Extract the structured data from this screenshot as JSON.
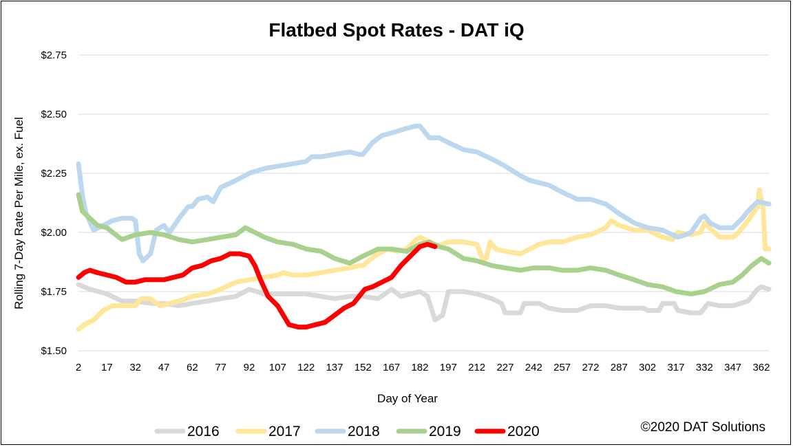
{
  "chart_data": {
    "type": "line",
    "title": "Flatbed Spot Rates - DAT iQ",
    "xlabel": "Day of Year",
    "ylabel": "Rolling 7-Day Rate Per Mile, ex. Fuel",
    "xlim": [
      2,
      366
    ],
    "ylim": [
      1.5,
      2.75
    ],
    "x_ticks": [
      2,
      17,
      32,
      47,
      62,
      77,
      92,
      107,
      122,
      137,
      152,
      167,
      182,
      197,
      212,
      227,
      242,
      257,
      272,
      287,
      302,
      317,
      332,
      347,
      362
    ],
    "y_ticks": [
      {
        "value": 1.5,
        "label": "$1.50"
      },
      {
        "value": 1.75,
        "label": "$1.75"
      },
      {
        "value": 2.0,
        "label": "$2.00"
      },
      {
        "value": 2.25,
        "label": "$2.25"
      },
      {
        "value": 2.5,
        "label": "$2.50"
      },
      {
        "value": 2.75,
        "label": "$2.75"
      }
    ],
    "grid": true,
    "legend_position": "bottom",
    "copyright": "©2020 DAT Solutions",
    "series": [
      {
        "name": "2016",
        "color": "#d9d9d9",
        "points": [
          [
            2,
            1.78
          ],
          [
            8,
            1.76
          ],
          [
            17,
            1.74
          ],
          [
            25,
            1.71
          ],
          [
            32,
            1.71
          ],
          [
            40,
            1.7
          ],
          [
            47,
            1.7
          ],
          [
            55,
            1.69
          ],
          [
            62,
            1.7
          ],
          [
            70,
            1.71
          ],
          [
            77,
            1.72
          ],
          [
            85,
            1.73
          ],
          [
            92,
            1.76
          ],
          [
            100,
            1.74
          ],
          [
            107,
            1.74
          ],
          [
            115,
            1.74
          ],
          [
            122,
            1.74
          ],
          [
            130,
            1.73
          ],
          [
            137,
            1.72
          ],
          [
            145,
            1.73
          ],
          [
            152,
            1.73
          ],
          [
            160,
            1.72
          ],
          [
            167,
            1.76
          ],
          [
            172,
            1.73
          ],
          [
            182,
            1.75
          ],
          [
            186,
            1.73
          ],
          [
            190,
            1.63
          ],
          [
            194,
            1.65
          ],
          [
            197,
            1.75
          ],
          [
            205,
            1.75
          ],
          [
            212,
            1.74
          ],
          [
            220,
            1.72
          ],
          [
            225,
            1.7
          ],
          [
            227,
            1.66
          ],
          [
            235,
            1.66
          ],
          [
            237,
            1.7
          ],
          [
            245,
            1.7
          ],
          [
            250,
            1.68
          ],
          [
            257,
            1.67
          ],
          [
            265,
            1.67
          ],
          [
            272,
            1.69
          ],
          [
            280,
            1.69
          ],
          [
            287,
            1.68
          ],
          [
            295,
            1.68
          ],
          [
            300,
            1.68
          ],
          [
            302,
            1.67
          ],
          [
            308,
            1.67
          ],
          [
            310,
            1.7
          ],
          [
            316,
            1.7
          ],
          [
            318,
            1.67
          ],
          [
            325,
            1.66
          ],
          [
            330,
            1.66
          ],
          [
            334,
            1.7
          ],
          [
            340,
            1.69
          ],
          [
            347,
            1.69
          ],
          [
            355,
            1.71
          ],
          [
            360,
            1.76
          ],
          [
            362,
            1.77
          ],
          [
            366,
            1.76
          ]
        ]
      },
      {
        "name": "2017",
        "color": "#ffe699",
        "points": [
          [
            2,
            1.59
          ],
          [
            5,
            1.61
          ],
          [
            10,
            1.63
          ],
          [
            15,
            1.67
          ],
          [
            20,
            1.69
          ],
          [
            25,
            1.69
          ],
          [
            32,
            1.69
          ],
          [
            35,
            1.72
          ],
          [
            40,
            1.72
          ],
          [
            45,
            1.69
          ],
          [
            50,
            1.7
          ],
          [
            55,
            1.71
          ],
          [
            62,
            1.73
          ],
          [
            70,
            1.74
          ],
          [
            77,
            1.76
          ],
          [
            85,
            1.79
          ],
          [
            92,
            1.8
          ],
          [
            100,
            1.81
          ],
          [
            107,
            1.82
          ],
          [
            110,
            1.83
          ],
          [
            115,
            1.82
          ],
          [
            122,
            1.82
          ],
          [
            130,
            1.83
          ],
          [
            137,
            1.84
          ],
          [
            145,
            1.85
          ],
          [
            150,
            1.86
          ],
          [
            152,
            1.86
          ],
          [
            155,
            1.88
          ],
          [
            160,
            1.91
          ],
          [
            165,
            1.93
          ],
          [
            170,
            1.92
          ],
          [
            175,
            1.93
          ],
          [
            180,
            1.97
          ],
          [
            182,
            1.98
          ],
          [
            187,
            1.96
          ],
          [
            190,
            1.94
          ],
          [
            197,
            1.96
          ],
          [
            205,
            1.96
          ],
          [
            212,
            1.95
          ],
          [
            215,
            1.89
          ],
          [
            217,
            1.89
          ],
          [
            219,
            1.96
          ],
          [
            222,
            1.93
          ],
          [
            227,
            1.92
          ],
          [
            235,
            1.91
          ],
          [
            240,
            1.93
          ],
          [
            245,
            1.95
          ],
          [
            250,
            1.96
          ],
          [
            257,
            1.96
          ],
          [
            265,
            1.98
          ],
          [
            272,
            1.99
          ],
          [
            280,
            2.02
          ],
          [
            283,
            2.05
          ],
          [
            287,
            2.03
          ],
          [
            295,
            2.01
          ],
          [
            302,
            2.01
          ],
          [
            310,
            1.98
          ],
          [
            315,
            1.97
          ],
          [
            318,
            2.0
          ],
          [
            325,
            1.99
          ],
          [
            330,
            2.0
          ],
          [
            332,
            2.04
          ],
          [
            336,
            2.01
          ],
          [
            340,
            1.98
          ],
          [
            347,
            1.98
          ],
          [
            350,
            2.0
          ],
          [
            355,
            2.05
          ],
          [
            360,
            2.11
          ],
          [
            361,
            2.18
          ],
          [
            362,
            2.14
          ],
          [
            363,
            2.1
          ],
          [
            364,
            1.93
          ],
          [
            366,
            1.93
          ]
        ]
      },
      {
        "name": "2018",
        "color": "#bdd7ee",
        "points": [
          [
            2,
            2.29
          ],
          [
            4,
            2.16
          ],
          [
            6,
            2.08
          ],
          [
            10,
            2.01
          ],
          [
            15,
            2.03
          ],
          [
            20,
            2.05
          ],
          [
            25,
            2.06
          ],
          [
            30,
            2.06
          ],
          [
            32,
            2.05
          ],
          [
            34,
            1.91
          ],
          [
            36,
            1.88
          ],
          [
            40,
            1.91
          ],
          [
            43,
            2.01
          ],
          [
            47,
            2.03
          ],
          [
            50,
            2.0
          ],
          [
            55,
            2.06
          ],
          [
            60,
            2.11
          ],
          [
            62,
            2.11
          ],
          [
            65,
            2.14
          ],
          [
            70,
            2.15
          ],
          [
            73,
            2.13
          ],
          [
            77,
            2.19
          ],
          [
            85,
            2.22
          ],
          [
            92,
            2.25
          ],
          [
            100,
            2.27
          ],
          [
            107,
            2.28
          ],
          [
            115,
            2.29
          ],
          [
            122,
            2.3
          ],
          [
            125,
            2.32
          ],
          [
            130,
            2.32
          ],
          [
            137,
            2.33
          ],
          [
            145,
            2.34
          ],
          [
            150,
            2.33
          ],
          [
            152,
            2.33
          ],
          [
            157,
            2.38
          ],
          [
            162,
            2.41
          ],
          [
            167,
            2.42
          ],
          [
            175,
            2.44
          ],
          [
            180,
            2.45
          ],
          [
            182,
            2.45
          ],
          [
            185,
            2.42
          ],
          [
            187,
            2.4
          ],
          [
            192,
            2.4
          ],
          [
            197,
            2.38
          ],
          [
            205,
            2.35
          ],
          [
            212,
            2.34
          ],
          [
            220,
            2.31
          ],
          [
            227,
            2.28
          ],
          [
            235,
            2.24
          ],
          [
            240,
            2.22
          ],
          [
            245,
            2.21
          ],
          [
            250,
            2.2
          ],
          [
            257,
            2.17
          ],
          [
            265,
            2.14
          ],
          [
            270,
            2.14
          ],
          [
            272,
            2.14
          ],
          [
            280,
            2.12
          ],
          [
            287,
            2.08
          ],
          [
            295,
            2.04
          ],
          [
            302,
            2.02
          ],
          [
            310,
            2.01
          ],
          [
            315,
            1.99
          ],
          [
            318,
            1.98
          ],
          [
            322,
            1.99
          ],
          [
            325,
            2.0
          ],
          [
            330,
            2.06
          ],
          [
            332,
            2.07
          ],
          [
            335,
            2.04
          ],
          [
            340,
            2.02
          ],
          [
            347,
            2.02
          ],
          [
            352,
            2.06
          ],
          [
            355,
            2.09
          ],
          [
            360,
            2.13
          ],
          [
            366,
            2.12
          ]
        ]
      },
      {
        "name": "2019",
        "color": "#a9d18e",
        "points": [
          [
            2,
            2.16
          ],
          [
            4,
            2.09
          ],
          [
            8,
            2.06
          ],
          [
            12,
            2.03
          ],
          [
            17,
            2.02
          ],
          [
            20,
            2.0
          ],
          [
            25,
            1.97
          ],
          [
            32,
            1.99
          ],
          [
            40,
            2.0
          ],
          [
            47,
            1.99
          ],
          [
            55,
            1.97
          ],
          [
            62,
            1.96
          ],
          [
            70,
            1.97
          ],
          [
            77,
            1.98
          ],
          [
            85,
            1.99
          ],
          [
            90,
            2.02
          ],
          [
            95,
            2.0
          ],
          [
            100,
            1.98
          ],
          [
            107,
            1.96
          ],
          [
            115,
            1.95
          ],
          [
            122,
            1.93
          ],
          [
            130,
            1.92
          ],
          [
            137,
            1.89
          ],
          [
            145,
            1.87
          ],
          [
            152,
            1.9
          ],
          [
            160,
            1.93
          ],
          [
            167,
            1.93
          ],
          [
            175,
            1.92
          ],
          [
            182,
            1.95
          ],
          [
            187,
            1.96
          ],
          [
            192,
            1.94
          ],
          [
            197,
            1.93
          ],
          [
            205,
            1.89
          ],
          [
            212,
            1.88
          ],
          [
            220,
            1.86
          ],
          [
            227,
            1.85
          ],
          [
            235,
            1.84
          ],
          [
            242,
            1.85
          ],
          [
            250,
            1.85
          ],
          [
            257,
            1.84
          ],
          [
            265,
            1.84
          ],
          [
            272,
            1.85
          ],
          [
            280,
            1.84
          ],
          [
            287,
            1.82
          ],
          [
            295,
            1.8
          ],
          [
            302,
            1.78
          ],
          [
            310,
            1.77
          ],
          [
            317,
            1.75
          ],
          [
            325,
            1.74
          ],
          [
            332,
            1.75
          ],
          [
            340,
            1.78
          ],
          [
            347,
            1.79
          ],
          [
            352,
            1.82
          ],
          [
            357,
            1.86
          ],
          [
            362,
            1.89
          ],
          [
            366,
            1.87
          ]
        ]
      },
      {
        "name": "2020",
        "color": "#ff0000",
        "points": [
          [
            2,
            1.81
          ],
          [
            5,
            1.83
          ],
          [
            8,
            1.84
          ],
          [
            12,
            1.83
          ],
          [
            17,
            1.82
          ],
          [
            22,
            1.81
          ],
          [
            27,
            1.79
          ],
          [
            32,
            1.79
          ],
          [
            37,
            1.8
          ],
          [
            42,
            1.8
          ],
          [
            47,
            1.8
          ],
          [
            52,
            1.81
          ],
          [
            57,
            1.82
          ],
          [
            62,
            1.85
          ],
          [
            67,
            1.86
          ],
          [
            72,
            1.88
          ],
          [
            77,
            1.89
          ],
          [
            82,
            1.91
          ],
          [
            87,
            1.91
          ],
          [
            92,
            1.9
          ],
          [
            95,
            1.86
          ],
          [
            98,
            1.8
          ],
          [
            102,
            1.73
          ],
          [
            107,
            1.69
          ],
          [
            110,
            1.65
          ],
          [
            113,
            1.61
          ],
          [
            118,
            1.6
          ],
          [
            122,
            1.6
          ],
          [
            127,
            1.61
          ],
          [
            132,
            1.62
          ],
          [
            137,
            1.65
          ],
          [
            142,
            1.68
          ],
          [
            147,
            1.7
          ],
          [
            150,
            1.73
          ],
          [
            153,
            1.76
          ],
          [
            157,
            1.77
          ],
          [
            162,
            1.79
          ],
          [
            167,
            1.81
          ],
          [
            172,
            1.86
          ],
          [
            177,
            1.9
          ],
          [
            182,
            1.94
          ],
          [
            186,
            1.95
          ],
          [
            190,
            1.94
          ]
        ]
      }
    ]
  }
}
